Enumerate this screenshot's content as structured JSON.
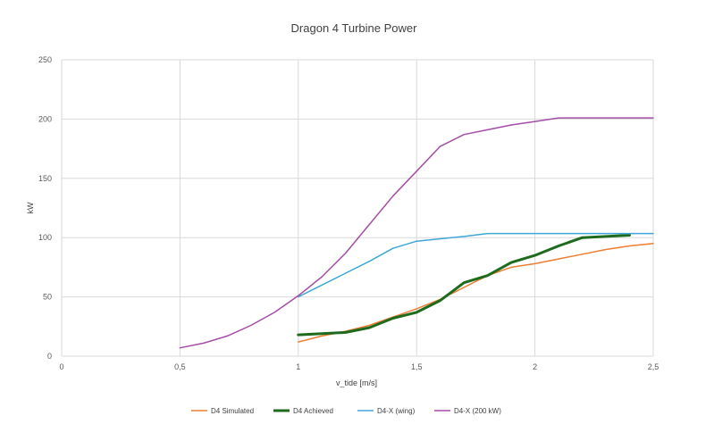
{
  "chart_data": {
    "type": "line",
    "title": "Dragon 4 Turbine Power",
    "xlabel": "v_tide [m/s]",
    "ylabel": "kW",
    "xlim": [
      0,
      2.5
    ],
    "ylim": [
      0,
      250
    ],
    "x_ticks": [
      0,
      0.5,
      1,
      1.5,
      2,
      2.5
    ],
    "x_tick_labels": [
      "0",
      "0,5",
      "1",
      "1,5",
      "2",
      "2,5"
    ],
    "y_ticks": [
      0,
      50,
      100,
      150,
      200,
      250
    ],
    "y_tick_labels": [
      "0",
      "50",
      "100",
      "150",
      "200",
      "250"
    ],
    "grid": "vertical and horizontal",
    "legend_position": "bottom",
    "series": [
      {
        "name": "D4 Simulated",
        "color": "#ED7D31",
        "width": 1.5,
        "points": [
          [
            1.0,
            12
          ],
          [
            1.1,
            17
          ],
          [
            1.2,
            21
          ],
          [
            1.3,
            26
          ],
          [
            1.4,
            33
          ],
          [
            1.5,
            40
          ],
          [
            1.6,
            48
          ],
          [
            1.7,
            58
          ],
          [
            1.8,
            68
          ],
          [
            1.9,
            75
          ],
          [
            2.0,
            78
          ],
          [
            2.1,
            82
          ],
          [
            2.2,
            86
          ],
          [
            2.3,
            90
          ],
          [
            2.4,
            93
          ],
          [
            2.5,
            95
          ]
        ]
      },
      {
        "name": "D4 Achieved",
        "color": "#1E6B1E",
        "width": 3,
        "points": [
          [
            1.0,
            18
          ],
          [
            1.1,
            19
          ],
          [
            1.2,
            20
          ],
          [
            1.3,
            24
          ],
          [
            1.4,
            32
          ],
          [
            1.5,
            37
          ],
          [
            1.6,
            47
          ],
          [
            1.7,
            62
          ],
          [
            1.8,
            68
          ],
          [
            1.9,
            79
          ],
          [
            2.0,
            85
          ],
          [
            2.1,
            93
          ],
          [
            2.2,
            100
          ],
          [
            2.3,
            101
          ],
          [
            2.4,
            102
          ]
        ]
      },
      {
        "name": "D4-X (wing)",
        "color": "#3EA7D8",
        "width": 1.5,
        "points": [
          [
            1.0,
            50
          ],
          [
            1.1,
            60
          ],
          [
            1.2,
            70
          ],
          [
            1.3,
            80
          ],
          [
            1.4,
            91
          ],
          [
            1.5,
            97
          ],
          [
            1.6,
            99
          ],
          [
            1.7,
            101
          ],
          [
            1.8,
            103.5
          ],
          [
            1.9,
            103.5
          ],
          [
            2.0,
            103.5
          ],
          [
            2.1,
            103.5
          ],
          [
            2.2,
            103.5
          ],
          [
            2.3,
            103.5
          ],
          [
            2.4,
            103.5
          ],
          [
            2.5,
            103.5
          ]
        ]
      },
      {
        "name": "D4-X (200 kW)",
        "color": "#A64CA6",
        "width": 1.5,
        "points": [
          [
            0.5,
            7
          ],
          [
            0.6,
            11
          ],
          [
            0.7,
            17
          ],
          [
            0.8,
            26
          ],
          [
            0.9,
            37
          ],
          [
            1.0,
            51
          ],
          [
            1.1,
            67
          ],
          [
            1.2,
            87
          ],
          [
            1.3,
            111
          ],
          [
            1.4,
            135
          ],
          [
            1.5,
            156
          ],
          [
            1.6,
            177
          ],
          [
            1.7,
            187
          ],
          [
            1.8,
            191
          ],
          [
            1.9,
            195
          ],
          [
            2.0,
            198
          ],
          [
            2.1,
            201
          ],
          [
            2.2,
            201
          ],
          [
            2.3,
            201
          ],
          [
            2.4,
            201
          ],
          [
            2.5,
            201
          ]
        ]
      }
    ]
  }
}
